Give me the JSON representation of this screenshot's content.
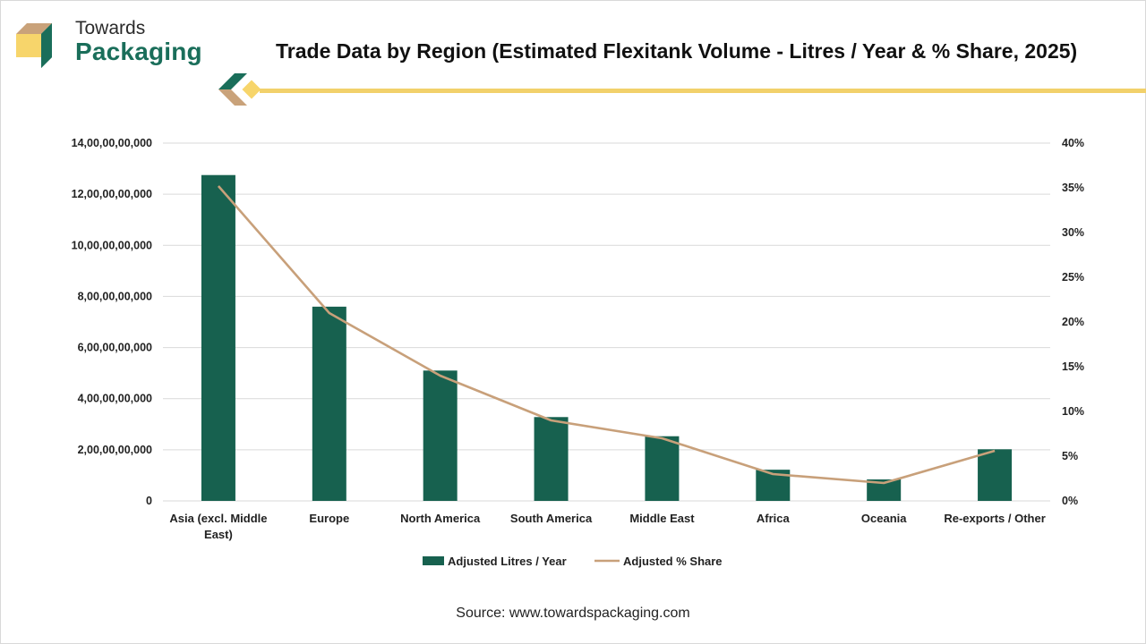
{
  "header": {
    "logo_line1": "Towards",
    "logo_line2": "Packaging",
    "title": "Trade Data by Region (Estimated Flexitank Volume - Litres / Year & % Share, 2025)"
  },
  "colors": {
    "bar": "#17614f",
    "line": "#c8a07a",
    "accent_gold": "#f2d16b",
    "brand_green": "#1a6e5a"
  },
  "chart_data": {
    "type": "bar",
    "categories": [
      [
        "Asia (excl. Middle",
        "East)"
      ],
      [
        "Europe"
      ],
      [
        "North America"
      ],
      [
        "South America"
      ],
      [
        "Middle East"
      ],
      [
        "Africa"
      ],
      [
        "Oceania"
      ],
      [
        "Re-exports / Other"
      ]
    ],
    "series": [
      {
        "name": "Adjusted Litres / Year",
        "type": "bar",
        "axis": "left",
        "values": [
          12750000000,
          7600000000,
          5100000000,
          3280000000,
          2530000000,
          1220000000,
          840000000,
          2020000000
        ]
      },
      {
        "name": "Adjusted % Share",
        "type": "line",
        "axis": "right",
        "values": [
          35.2,
          21.0,
          14.0,
          9.0,
          7.0,
          3.0,
          2.0,
          5.6
        ]
      }
    ],
    "y_left": {
      "ylim": [
        0,
        14000000000
      ],
      "ticks": [
        "0",
        "2,00,00,00,000",
        "4,00,00,00,000",
        "6,00,00,00,000",
        "8,00,00,00,000",
        "10,00,00,00,000",
        "12,00,00,00,000",
        "14,00,00,00,000"
      ]
    },
    "y_right": {
      "ylim": [
        0,
        40
      ],
      "ticks": [
        "0%",
        "5%",
        "10%",
        "15%",
        "20%",
        "25%",
        "30%",
        "35%",
        "40%"
      ]
    },
    "grid": true,
    "legend": "bottom"
  },
  "source": "Source: www.towardspackaging.com"
}
